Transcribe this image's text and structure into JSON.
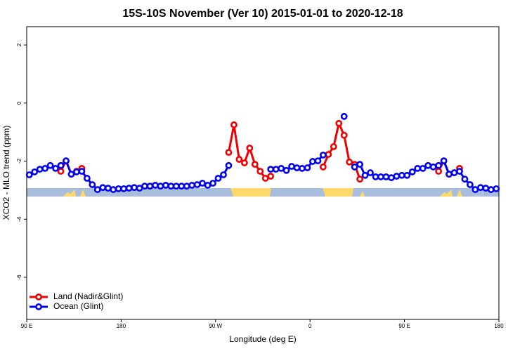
{
  "chart_data": {
    "type": "line",
    "title": "15S-10S November (Ver 10)   2015-01-01 to 2020-12-18",
    "x_label": "Longitude (deg E)",
    "y_label": "XCO2 - MLO trend (ppm)",
    "xlim": [
      90,
      540
    ],
    "ylim": [
      -7.45,
      2.63
    ],
    "xticks": [
      {
        "value": 90,
        "label": "90 E"
      },
      {
        "value": 180,
        "label": "180"
      },
      {
        "value": 270,
        "label": "90 W"
      },
      {
        "value": 360,
        "label": "0"
      },
      {
        "value": 450,
        "label": "90 E"
      },
      {
        "value": 540,
        "label": "180"
      }
    ],
    "yticks": [
      -6,
      -4,
      -2,
      0,
      2
    ],
    "legend": "bottom-left",
    "series": [
      {
        "name": "Land (Nadir&Glint)",
        "color": "#ee0000",
        "x": [
          122.5,
          127.5,
          132.5,
          137.5,
          142.5,
          null,
          282.5,
          287.5,
          292.5,
          297.5,
          302.5,
          307.5,
          312.5,
          317.5,
          322.5,
          null,
          372.5,
          377.5,
          382.5,
          387.5,
          392.5,
          397.5,
          402.5,
          407.5,
          null,
          482.5,
          487.5,
          492.5,
          497.5,
          502.5
        ],
        "values": [
          -2.35,
          -1.99,
          -2.45,
          -2.35,
          -2.25,
          null,
          -1.7,
          -0.75,
          -1.94,
          -2.06,
          -1.55,
          -2.11,
          -2.35,
          -2.59,
          -2.52,
          null,
          -2.2,
          -1.77,
          -1.5,
          -0.7,
          -1.11,
          -2.03,
          -2.11,
          -2.62,
          null,
          -2.35,
          -1.99,
          -2.45,
          -2.4,
          -2.25
        ]
      },
      {
        "name": "Ocean (Glint)",
        "color": "#0000ee",
        "x": [
          92.5,
          97.5,
          102.5,
          107.5,
          112.5,
          117.5,
          122.5,
          127.5,
          132.5,
          137.5,
          142.5,
          147.5,
          152.5,
          157.5,
          162.5,
          167.5,
          172.5,
          177.5,
          182.5,
          187.5,
          192.5,
          197.5,
          202.5,
          207.5,
          212.5,
          217.5,
          222.5,
          227.5,
          232.5,
          237.5,
          242.5,
          247.5,
          252.5,
          257.5,
          262.5,
          267.5,
          272.5,
          277.5,
          282.5,
          null,
          322.5,
          327.5,
          332.5,
          337.5,
          342.5,
          347.5,
          352.5,
          357.5,
          362.5,
          367.5,
          372.5,
          null,
          392.5,
          null,
          402.5,
          407.5,
          412.5,
          417.5,
          422.5,
          427.5,
          432.5,
          437.5,
          442.5,
          447.5,
          452.5,
          457.5,
          462.5,
          467.5,
          472.5,
          477.5,
          482.5,
          487.5,
          492.5,
          497.5,
          502.5,
          507.5,
          512.5,
          517.5,
          522.5,
          527.5,
          532.5,
          537.5
        ],
        "values": [
          -2.47,
          -2.37,
          -2.28,
          -2.25,
          -2.15,
          -2.25,
          -2.15,
          -1.99,
          -2.45,
          -2.37,
          -2.35,
          -2.59,
          -2.81,
          -2.98,
          -2.91,
          -2.93,
          -2.98,
          -2.95,
          -2.95,
          -2.93,
          -2.91,
          -2.93,
          -2.86,
          -2.86,
          -2.83,
          -2.86,
          -2.83,
          -2.86,
          -2.86,
          -2.86,
          -2.86,
          -2.83,
          -2.81,
          -2.76,
          -2.83,
          -2.76,
          -2.59,
          -2.47,
          -2.15,
          null,
          -2.28,
          -2.28,
          -2.25,
          -2.32,
          -2.18,
          -2.23,
          -2.25,
          -2.23,
          -2.01,
          -1.99,
          -1.79,
          null,
          -0.46,
          null,
          -2.2,
          -2.11,
          -2.49,
          -2.4,
          -2.54,
          -2.54,
          -2.54,
          -2.57,
          -2.52,
          -2.49,
          -2.49,
          -2.37,
          -2.25,
          -2.25,
          -2.15,
          -2.2,
          -2.15,
          -1.99,
          -2.45,
          -2.4,
          -2.35,
          -2.62,
          -2.81,
          -2.98,
          -2.91,
          -2.93,
          -2.98,
          -2.95
        ]
      }
    ]
  }
}
